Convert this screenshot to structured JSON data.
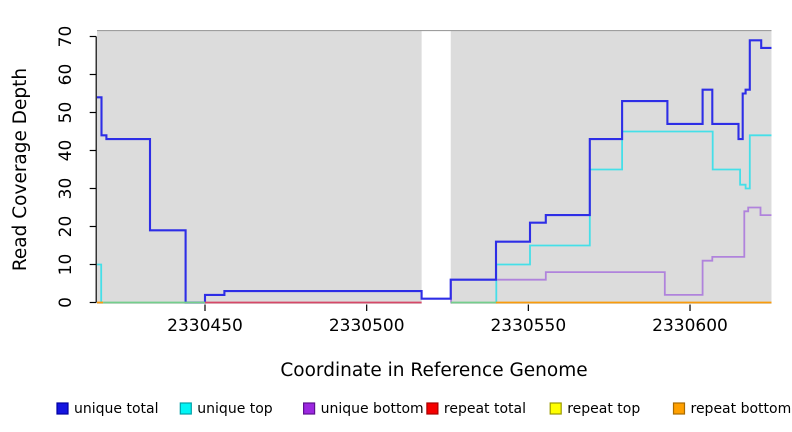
{
  "chart_data": {
    "type": "line",
    "subtype": "step",
    "title": "",
    "xlabel": "Coordinate in Reference Genome",
    "ylabel": "Read Coverage Depth",
    "xlim": [
      2330416.6,
      2330625.2
    ],
    "ylim": [
      0,
      70
    ],
    "xticks": [
      2330450,
      2330500,
      2330550,
      2330600
    ],
    "yticks": [
      0,
      10,
      20,
      30,
      40,
      50,
      60,
      70
    ],
    "grid": "off",
    "plot_background": "#DCDCDC",
    "panel_top_border_color": "#9E9E9E",
    "gap_region": {
      "from": 2330517,
      "to": 2330526,
      "color": "#FFFFFF"
    },
    "series": [
      {
        "name": "unique bottom",
        "color": "#B083DC",
        "width": 1.8,
        "points": [
          [
            2330525.9,
            0
          ],
          [
            2330526.1,
            6
          ],
          [
            2330555.4,
            8
          ],
          [
            2330592.2,
            2
          ],
          [
            2330603.9,
            11
          ],
          [
            2330606.9,
            12
          ],
          [
            2330616.8,
            24
          ],
          [
            2330618.0,
            25
          ],
          [
            2330621.8,
            23
          ]
        ],
        "xend": 2330625.2
      },
      {
        "name": "unique top left spike",
        "color": "#45DFE8",
        "width": 1.8,
        "points": [
          [
            2330416.6,
            10
          ],
          [
            2330417.9,
            0
          ]
        ],
        "xend": 2330418.5
      },
      {
        "name": "unique top",
        "color": "#45DFE8",
        "width": 1.8,
        "points": [
          [
            2330539.9,
            0
          ],
          [
            2330540.1,
            10
          ],
          [
            2330550.5,
            15
          ],
          [
            2330569,
            35
          ],
          [
            2330579,
            45
          ],
          [
            2330607,
            35
          ],
          [
            2330615.5,
            31
          ],
          [
            2330617.2,
            30
          ],
          [
            2330618.5,
            44
          ]
        ],
        "xend": 2330625.2
      },
      {
        "name": "unique total",
        "color": "#2E2EE6",
        "width": 2.1,
        "points": [
          [
            2330416.6,
            54
          ],
          [
            2330418.0,
            44
          ],
          [
            2330419.5,
            43
          ],
          [
            2330433,
            19
          ],
          [
            2330444,
            0
          ],
          [
            2330450,
            2
          ],
          [
            2330456,
            3
          ],
          [
            2330517,
            1
          ],
          [
            2330526,
            6
          ],
          [
            2330540,
            16
          ],
          [
            2330550.5,
            21
          ],
          [
            2330555.4,
            23
          ],
          [
            2330569,
            43
          ],
          [
            2330579,
            53
          ],
          [
            2330593,
            47
          ],
          [
            2330603.9,
            56
          ],
          [
            2330606.9,
            47
          ],
          [
            2330615,
            43
          ],
          [
            2330616.3,
            55
          ],
          [
            2330617.2,
            56
          ],
          [
            2330618.5,
            69
          ],
          [
            2330622,
            67
          ]
        ],
        "xend": 2330625.2
      }
    ],
    "zero_line_segments": [
      {
        "name": "repeat bottom (left edge)",
        "color": "#F99B0C",
        "from": 2330416.6,
        "to": 2330418.5
      },
      {
        "name": "unique top + repeat top overlap",
        "color": "#74CE8C",
        "from": 2330418.5,
        "to": 2330450
      },
      {
        "name": "repeat total",
        "color": "#D64868",
        "from": 2330450,
        "to": 2330517
      },
      {
        "name": "unique top + repeat top overlap",
        "color": "#74CE8C",
        "from": 2330526,
        "to": 2330540
      },
      {
        "name": "repeat bottom",
        "color": "#F99B0C",
        "from": 2330540,
        "to": 2330625.2
      }
    ],
    "legend": {
      "position": "bottom",
      "items": [
        {
          "label": "unique total",
          "fill": "#1414E0",
          "border": "#0000A0"
        },
        {
          "label": "unique top",
          "fill": "#00F5F5",
          "border": "#00A0A8"
        },
        {
          "label": "unique bottom",
          "fill": "#9C27E0",
          "border": "#5E1090"
        },
        {
          "label": "repeat total",
          "fill": "#F50000",
          "border": "#A80000"
        },
        {
          "label": "repeat top",
          "fill": "#FFFF00",
          "border": "#9A9A00"
        },
        {
          "label": "repeat bottom",
          "fill": "#FFA000",
          "border": "#A86A00"
        }
      ]
    }
  }
}
